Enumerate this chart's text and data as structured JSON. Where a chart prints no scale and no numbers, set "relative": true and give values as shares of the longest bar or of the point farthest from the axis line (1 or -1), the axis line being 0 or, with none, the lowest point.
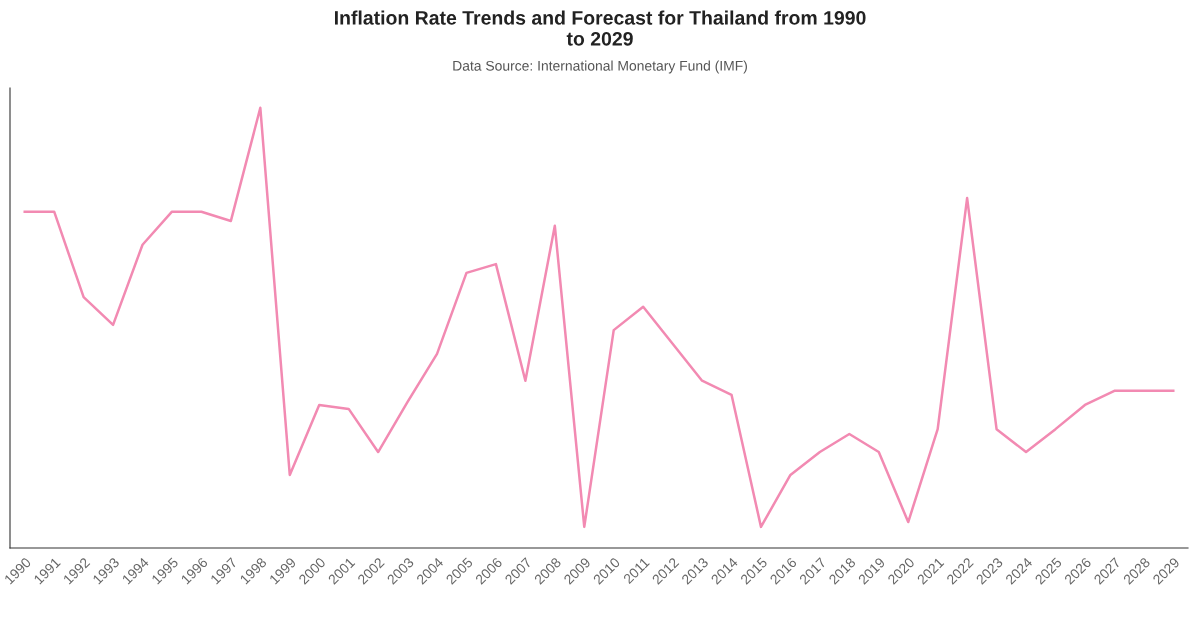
{
  "chart_data": {
    "type": "line",
    "title": "Inflation Rate Trends and Forecast for Thailand from 1990\nto 2029",
    "subtitle": "Data Source: International Monetary Fund (IMF)",
    "relative": true,
    "grid": false,
    "marker": "none",
    "line_style": "solid",
    "categories": [
      "1990",
      "1991",
      "1992",
      "1993",
      "1994",
      "1995",
      "1996",
      "1997",
      "1998",
      "1999",
      "2000",
      "2001",
      "2002",
      "2003",
      "2004",
      "2005",
      "2006",
      "2007",
      "2008",
      "2009",
      "2010",
      "2011",
      "2012",
      "2013",
      "2014",
      "2015",
      "2016",
      "2017",
      "2018",
      "2019",
      "2020",
      "2021",
      "2022",
      "2023",
      "2024",
      "2025",
      "2026",
      "2027",
      "2028",
      "2029"
    ],
    "series": [
      {
        "color": "#f28ab2",
        "values": [
          0.764,
          0.764,
          0.57,
          0.507,
          0.689,
          0.764,
          0.764,
          0.743,
          1.0,
          0.166,
          0.325,
          0.316,
          0.218,
          0.332,
          0.441,
          0.625,
          0.645,
          0.38,
          0.732,
          0.048,
          0.495,
          0.548,
          0.464,
          0.38,
          0.348,
          0.048,
          0.166,
          0.218,
          0.259,
          0.218,
          0.059,
          0.27,
          0.795,
          0.27,
          0.218,
          0.27,
          0.325,
          0.357,
          0.357,
          0.357
        ]
      }
    ]
  }
}
